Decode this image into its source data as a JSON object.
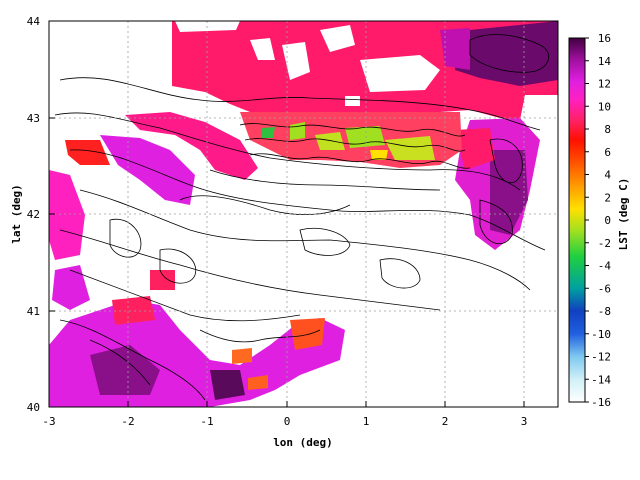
{
  "map": {
    "xlabel": "lon (deg)",
    "ylabel": "lat (deg)",
    "xlim": [
      -3,
      3.5
    ],
    "ylim": [
      40,
      44
    ],
    "x_ticks": [
      "-3",
      "-2",
      "-1",
      "0",
      "1",
      "2",
      "3"
    ],
    "y_ticks": [
      "40",
      "41",
      "42",
      "43",
      "44"
    ],
    "grid": true,
    "contours": "topographic elevation contours (black)"
  },
  "colorbar": {
    "label": "LST (deg C)",
    "range": [
      -16,
      16
    ],
    "ticks": [
      "16",
      "14",
      "12",
      "10",
      "8",
      "6",
      "4",
      "2",
      "0",
      "-2",
      "-4",
      "-6",
      "-8",
      "-10",
      "-12",
      "-14",
      "-16"
    ],
    "colors": [
      "#ffffff",
      "#d0f0f8",
      "#7ec8f0",
      "#2060e0",
      "#1040c0",
      "#00a0a0",
      "#20d040",
      "#a0e020",
      "#ffe000",
      "#ffa000",
      "#ff5000",
      "#ff1000",
      "#ff2060",
      "#ff20c0",
      "#e020e0",
      "#a010a0",
      "#400040"
    ]
  }
}
